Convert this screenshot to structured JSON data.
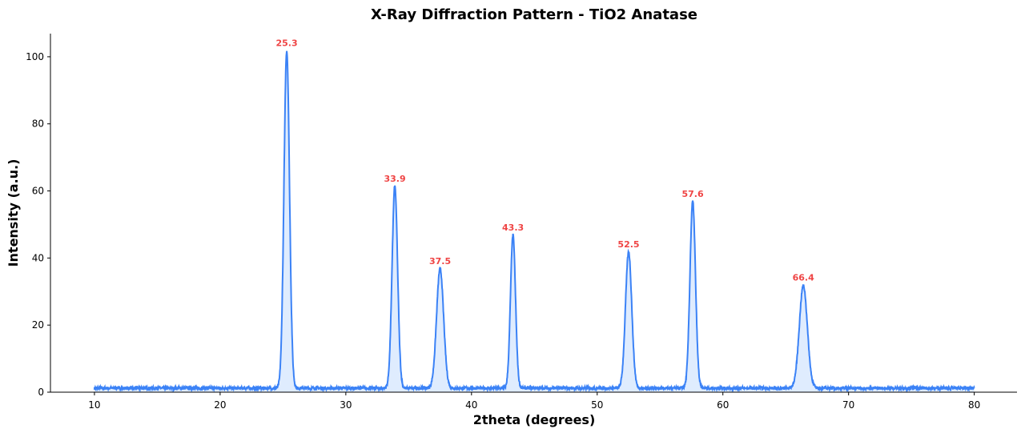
{
  "chart_data": {
    "type": "line",
    "title": "X-Ray Diffraction Pattern - TiO2 Anatase",
    "xlabel": "2theta (degrees)",
    "ylabel": "Intensity (a.u.)",
    "xlim": [
      6.5,
      83.4
    ],
    "ylim": [
      0,
      106.9
    ],
    "x_range": [
      10,
      80
    ],
    "xticks": [
      10,
      20,
      30,
      40,
      50,
      60,
      70,
      80
    ],
    "yticks": [
      0,
      20,
      40,
      60,
      80,
      100
    ],
    "grid": false,
    "baseline": 1.2,
    "peaks": [
      {
        "x": 25.3,
        "intensity": 101.8,
        "width": 0.22,
        "label": "25.3"
      },
      {
        "x": 33.9,
        "intensity": 61.3,
        "width": 0.22,
        "label": "33.9"
      },
      {
        "x": 37.5,
        "intensity": 36.8,
        "width": 0.28,
        "label": "37.5"
      },
      {
        "x": 43.3,
        "intensity": 46.8,
        "width": 0.2,
        "label": "43.3"
      },
      {
        "x": 52.5,
        "intensity": 41.8,
        "width": 0.25,
        "label": "52.5"
      },
      {
        "x": 57.6,
        "intensity": 56.8,
        "width": 0.22,
        "label": "57.6"
      },
      {
        "x": 66.4,
        "intensity": 31.8,
        "width": 0.32,
        "label": "66.4"
      }
    ],
    "colors": {
      "line": "#3b82f6",
      "fill": "#dbeafe",
      "peak_label": "#ef4444"
    }
  }
}
